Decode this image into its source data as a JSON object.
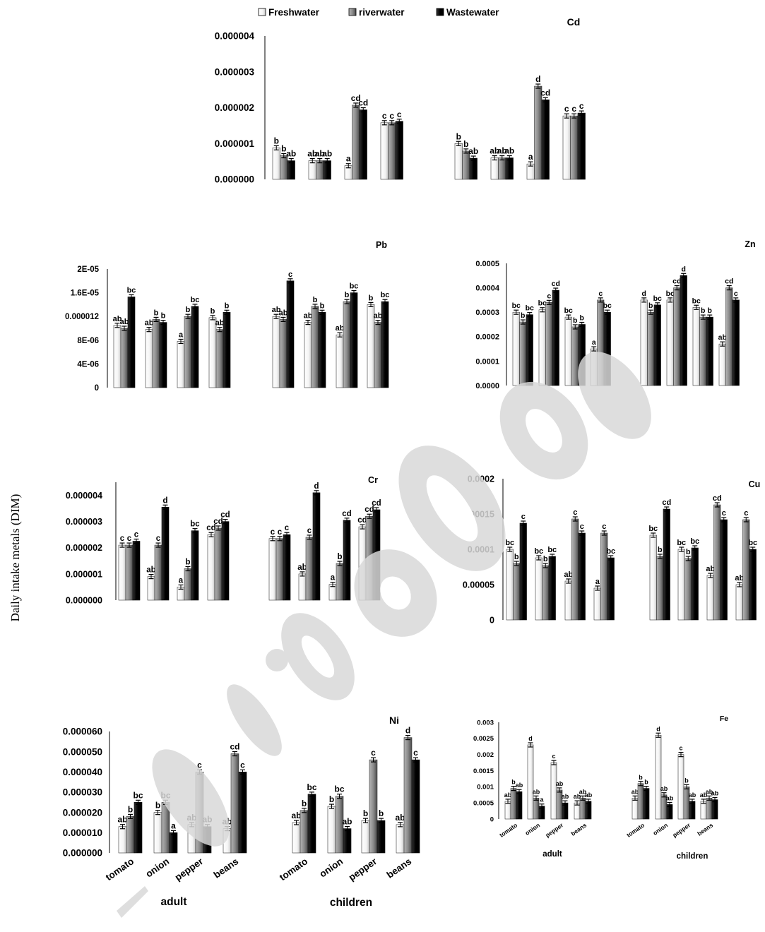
{
  "y_axis_label": "Daily intake metals (DIM)",
  "legend": [
    {
      "name": "Freshwater",
      "color": "#ffffff"
    },
    {
      "name": "riverwater",
      "color": "#8c8c8c"
    },
    {
      "name": "Wastewater",
      "color": "#000000"
    }
  ],
  "chart_data": [
    {
      "type": "bar",
      "title": "Cd",
      "categories": [
        "tomato",
        "onion",
        "pepper",
        "beans",
        "tomato",
        "onion",
        "pepper",
        "beans"
      ],
      "groups": [
        "adult",
        "children"
      ],
      "series": [
        {
          "name": "Freshwater",
          "values": [
            8.8e-07,
            5.2e-07,
            3.8e-07,
            1.58e-06,
            1e-06,
            6e-07,
            4.3e-07,
            1.77e-06
          ]
        },
        {
          "name": "riverwater",
          "values": [
            6.6e-07,
            5.2e-07,
            2.07e-06,
            1.58e-06,
            7.9e-07,
            6e-07,
            2.6e-06,
            1.77e-06
          ]
        },
        {
          "name": "Wastewater",
          "values": [
            5.2e-07,
            5.2e-07,
            1.94e-06,
            1.62e-06,
            5.9e-07,
            6e-07,
            2.22e-06,
            1.85e-06
          ]
        }
      ],
      "labels": [
        [
          "b",
          "b",
          "ab"
        ],
        [
          "ab",
          "ab",
          "ab"
        ],
        [
          "a",
          "cd",
          "cd"
        ],
        [
          "c",
          "c",
          "c"
        ],
        [
          "b",
          "b",
          "ab"
        ],
        [
          "ab",
          "ab",
          "ab"
        ],
        [
          "a",
          "d",
          "cd"
        ],
        [
          "c",
          "c",
          "c"
        ]
      ],
      "ticks": [
        "0.000000",
        "0.000001",
        "0.000002",
        "0.000003",
        "0.000004"
      ],
      "ylim": [
        0,
        4e-06
      ]
    },
    {
      "type": "bar",
      "title": "Pb",
      "categories": [
        "tomato",
        "onion",
        "pepper",
        "beans",
        "tomato",
        "onion",
        "pepper",
        "beans"
      ],
      "groups": [
        "adult",
        "children"
      ],
      "series": [
        {
          "name": "Freshwater",
          "values": [
            1.05e-05,
            9.8e-06,
            7.8e-06,
            1.18e-05,
            1.2e-05,
            1.1e-05,
            8.9e-06,
            1.4e-05
          ]
        },
        {
          "name": "riverwater",
          "values": [
            1e-05,
            1.15e-05,
            1.2e-05,
            9.8e-06,
            1.15e-05,
            1.37e-05,
            1.45e-05,
            1.1e-05
          ]
        },
        {
          "name": "Wastewater",
          "values": [
            1.53e-05,
            1.1e-05,
            1.37e-05,
            1.27e-05,
            1.8e-05,
            1.27e-05,
            1.6e-05,
            1.45e-05
          ]
        }
      ],
      "labels": [
        [
          "ab",
          "ab",
          "bc"
        ],
        [
          "ab",
          "b",
          "b"
        ],
        [
          "a",
          "b",
          "bc"
        ],
        [
          "b",
          "ab",
          "b"
        ],
        [
          "ab",
          "ab",
          "c"
        ],
        [
          "ab",
          "b",
          "b"
        ],
        [
          "ab",
          "b",
          "bc"
        ],
        [
          "b",
          "ab",
          "bc"
        ]
      ],
      "ticks": [
        "0",
        "4E-06",
        "8E-06",
        "0.000012",
        "1.6E-05",
        "2E-05"
      ],
      "ylim": [
        0,
        2e-05
      ]
    },
    {
      "type": "bar",
      "title": "Zn",
      "categories": [
        "tomato",
        "onion",
        "pepper",
        "beans",
        "tomato",
        "onion",
        "pepper",
        "beans"
      ],
      "groups": [
        "adult",
        "children"
      ],
      "series": [
        {
          "name": "Freshwater",
          "values": [
            0.0003,
            0.00031,
            0.00028,
            0.00015,
            0.00035,
            0.00035,
            0.00032,
            0.00017
          ]
        },
        {
          "name": "riverwater",
          "values": [
            0.00026,
            0.00034,
            0.00024,
            0.00035,
            0.0003,
            0.0004,
            0.00028,
            0.0004
          ]
        },
        {
          "name": "Wastewater",
          "values": [
            0.00029,
            0.00039,
            0.00025,
            0.0003,
            0.00033,
            0.00045,
            0.00028,
            0.00035
          ]
        }
      ],
      "labels": [
        [
          "bc",
          "b",
          "bc"
        ],
        [
          "bc",
          "c",
          "cd"
        ],
        [
          "bc",
          "b",
          "b"
        ],
        [
          "a",
          "c",
          "bc"
        ],
        [
          "d",
          "b",
          "bc"
        ],
        [
          "bc",
          "cd",
          "d"
        ],
        [
          "bc",
          "b",
          "b"
        ],
        [
          "ab",
          "cd",
          "c"
        ]
      ],
      "ticks": [
        "0.0000",
        "0.0001",
        "0.0002",
        "0.0003",
        "0.0004",
        "0.0005"
      ],
      "ylim": [
        0,
        0.0005
      ]
    },
    {
      "type": "bar",
      "title": "Cr",
      "categories": [
        "tomato",
        "onion",
        "pepper",
        "beans",
        "tomato",
        "onion",
        "pepper",
        "beans"
      ],
      "groups": [
        "adult",
        "children"
      ],
      "series": [
        {
          "name": "Freshwater",
          "values": [
            2.1e-06,
            9e-07,
            5e-07,
            2.5e-06,
            2.35e-06,
            1e-06,
            6e-07,
            2.8e-06
          ]
        },
        {
          "name": "riverwater",
          "values": [
            2.1e-06,
            2.1e-06,
            1.2e-06,
            2.75e-06,
            2.35e-06,
            2.4e-06,
            1.4e-06,
            3.2e-06
          ]
        },
        {
          "name": "Wastewater",
          "values": [
            2.25e-06,
            3.55e-06,
            2.65e-06,
            3e-06,
            2.5e-06,
            4.1e-06,
            3.05e-06,
            3.45e-06
          ]
        }
      ],
      "labels": [
        [
          "c",
          "c",
          "c"
        ],
        [
          "ab",
          "c",
          "d"
        ],
        [
          "a",
          "b",
          "bc"
        ],
        [
          "cd",
          "cd",
          "cd"
        ],
        [
          "c",
          "c",
          "c"
        ],
        [
          "ab",
          "c",
          "d"
        ],
        [
          "a",
          "b",
          "cd"
        ],
        [
          "cd",
          "cd",
          "cd"
        ]
      ],
      "ticks": [
        "0.000000",
        "0.000001",
        "0.000002",
        "0.000003",
        "0.000004"
      ],
      "ylim": [
        0,
        4.5e-06
      ]
    },
    {
      "type": "bar",
      "title": "Cu",
      "categories": [
        "tomato",
        "onion",
        "pepper",
        "beans",
        "tomato",
        "onion",
        "pepper",
        "beans"
      ],
      "groups": [
        "adult",
        "children"
      ],
      "series": [
        {
          "name": "Freshwater",
          "values": [
            0.0001,
            8.8e-05,
            5.5e-05,
            4.5e-05,
            0.00012,
            0.0001,
            6.3e-05,
            5e-05
          ]
        },
        {
          "name": "riverwater",
          "values": [
            8e-05,
            7.7e-05,
            0.000143,
            0.000123,
            9e-05,
            8.7e-05,
            0.000163,
            0.000142
          ]
        },
        {
          "name": "Wastewater",
          "values": [
            0.000137,
            9e-05,
            0.000123,
            8.8e-05,
            0.000157,
            0.000102,
            0.000142,
            0.0001
          ]
        }
      ],
      "labels": [
        [
          "bc",
          "b",
          "c"
        ],
        [
          "bc",
          "b",
          "bc"
        ],
        [
          "ab",
          "c",
          "c"
        ],
        [
          "a",
          "c",
          "bc"
        ],
        [
          "bc",
          "b",
          "cd"
        ],
        [
          "bc",
          "b",
          "bc"
        ],
        [
          "ab",
          "cd",
          "c"
        ],
        [
          "ab",
          "c",
          "bc"
        ]
      ],
      "ticks": [
        "0",
        "0.00005",
        "0.0001",
        "0.00015",
        "0.0002"
      ],
      "ylim": [
        0,
        0.0002
      ]
    },
    {
      "type": "bar",
      "title": "Ni",
      "categories": [
        "tomato",
        "onion",
        "pepper",
        "beans",
        "tomato",
        "onion",
        "pepper",
        "beans"
      ],
      "groups": [
        "adult",
        "children"
      ],
      "series": [
        {
          "name": "Freshwater",
          "values": [
            1.3e-05,
            2e-05,
            1.4e-05,
            1.2e-05,
            1.5e-05,
            2.3e-05,
            1.6e-05,
            1.4e-05
          ]
        },
        {
          "name": "riverwater",
          "values": [
            1.8e-05,
            2.5e-05,
            4e-05,
            4.9e-05,
            2.1e-05,
            2.8e-05,
            4.6e-05,
            5.7e-05
          ]
        },
        {
          "name": "Wastewater",
          "values": [
            2.5e-05,
            1e-05,
            1.3e-05,
            4e-05,
            2.9e-05,
            1.2e-05,
            1.6e-05,
            4.6e-05
          ]
        }
      ],
      "labels": [
        [
          "ab",
          "b",
          "bc"
        ],
        [
          "b",
          "bc",
          "a"
        ],
        [
          "ab",
          "c",
          "ab"
        ],
        [
          "ab",
          "cd",
          "c"
        ],
        [
          "ab",
          "b",
          "bc"
        ],
        [
          "b",
          "bc",
          "ab"
        ],
        [
          "b",
          "c",
          "b"
        ],
        [
          "ab",
          "d",
          "c"
        ]
      ],
      "ticks": [
        "0.000000",
        "0.000010",
        "0.000020",
        "0.000030",
        "0.000040",
        "0.000050",
        "0.000060"
      ],
      "ylim": [
        0,
        6e-05
      ]
    },
    {
      "type": "bar",
      "title": "Fe",
      "categories": [
        "tomato",
        "onion",
        "pepper",
        "beans",
        "tomato",
        "onion",
        "pepper",
        "beans"
      ],
      "groups": [
        "adult",
        "children"
      ],
      "series": [
        {
          "name": "Freshwater",
          "values": [
            0.00055,
            0.0023,
            0.00175,
            0.0005,
            0.00065,
            0.0026,
            0.002,
            0.00055
          ]
        },
        {
          "name": "riverwater",
          "values": [
            0.00095,
            0.00065,
            0.0009,
            0.00065,
            0.0011,
            0.00075,
            0.001,
            0.00065
          ]
        },
        {
          "name": "Wastewater",
          "values": [
            0.00085,
            0.0004,
            0.0005,
            0.00055,
            0.00095,
            0.00045,
            0.00055,
            0.0006
          ]
        }
      ],
      "labels": [
        [
          "ab",
          "b",
          "ab"
        ],
        [
          "d",
          "ab",
          "a"
        ],
        [
          "c",
          "ab",
          "ab"
        ],
        [
          "ab",
          "ab",
          "ab"
        ],
        [
          "ab",
          "b",
          "b"
        ],
        [
          "d",
          "ab",
          "ab"
        ],
        [
          "c",
          "b",
          "ab"
        ],
        [
          "ab",
          "ab",
          "ab"
        ]
      ],
      "ticks": [
        "0",
        "0.0005",
        "0.001",
        "0.0015",
        "0.002",
        "0.0025",
        "0.003"
      ],
      "ylim": [
        0,
        0.003
      ]
    }
  ]
}
